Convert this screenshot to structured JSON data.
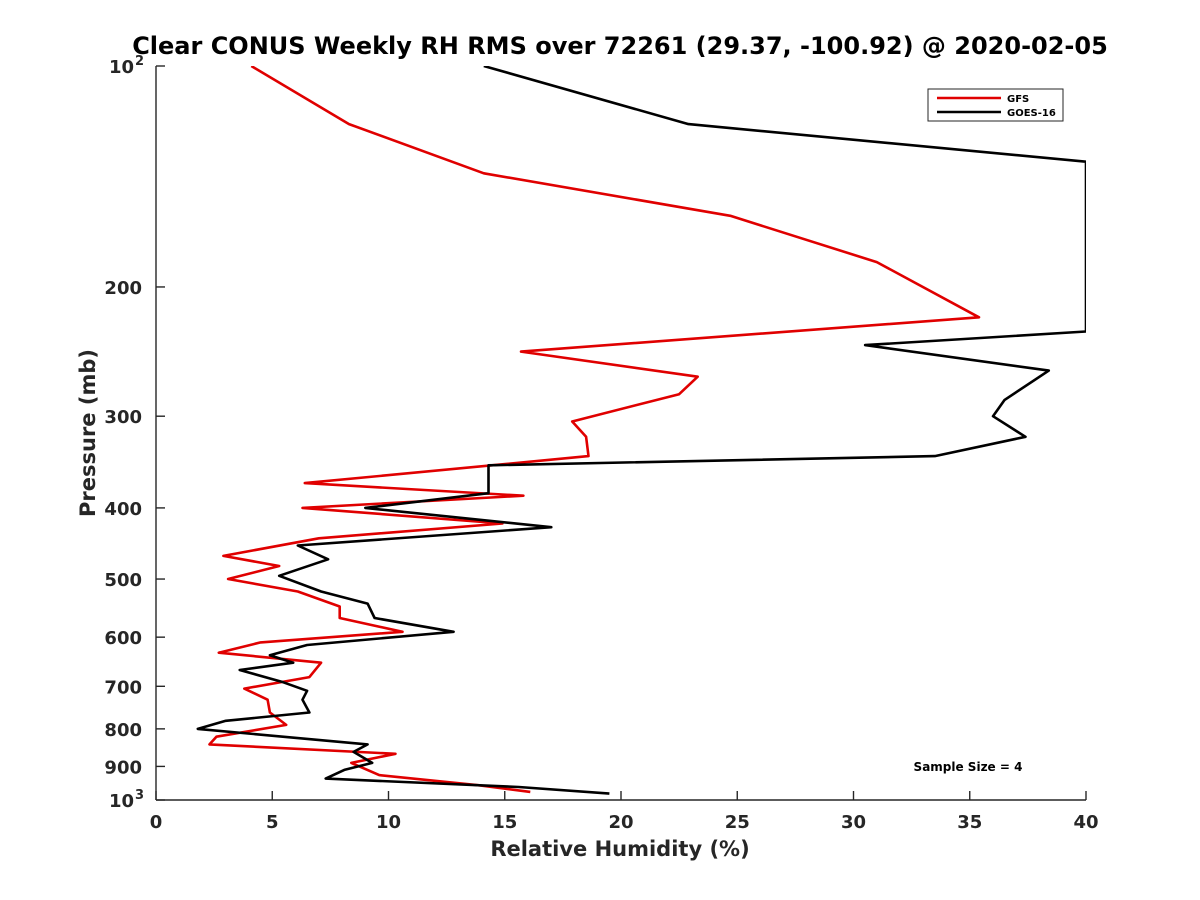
{
  "chart_data": {
    "type": "line",
    "title": "Clear CONUS Weekly RH RMS over 72261 (29.37, -100.92) @ 2020-02-05",
    "xlabel": "Relative Humidity (%)",
    "ylabel": "Pressure (mb)",
    "xlim": [
      0,
      40
    ],
    "ylim": [
      100,
      1000
    ],
    "y_scale": "log",
    "y_reversed": true,
    "x_ticks": [
      "0",
      "5",
      "10",
      "15",
      "20",
      "25",
      "30",
      "35",
      "40"
    ],
    "y_ticks": [
      {
        "value": 100,
        "label": "10",
        "exp": "2"
      },
      {
        "value": 200,
        "label": "200"
      },
      {
        "value": 300,
        "label": "300"
      },
      {
        "value": 400,
        "label": "400"
      },
      {
        "value": 500,
        "label": "500"
      },
      {
        "value": 600,
        "label": "600"
      },
      {
        "value": 700,
        "label": "700"
      },
      {
        "value": 800,
        "label": "800"
      },
      {
        "value": 900,
        "label": "900"
      },
      {
        "value": 1000,
        "label": "10",
        "exp": "3"
      }
    ],
    "legend_position": "top-right",
    "annotation": "Sample Size = 4",
    "series": [
      {
        "name": "GFS",
        "color": "#e00000",
        "points": [
          [
            4.1,
            100
          ],
          [
            8.3,
            120
          ],
          [
            14.1,
            140
          ],
          [
            24.7,
            160
          ],
          [
            31.0,
            185
          ],
          [
            35.4,
            220
          ],
          [
            15.7,
            245
          ],
          [
            23.3,
            265
          ],
          [
            22.5,
            280
          ],
          [
            17.9,
            305
          ],
          [
            18.5,
            320
          ],
          [
            18.6,
            340
          ],
          [
            6.4,
            370
          ],
          [
            15.8,
            385
          ],
          [
            6.3,
            400
          ],
          [
            14.9,
            420
          ],
          [
            7.0,
            440
          ],
          [
            2.9,
            465
          ],
          [
            5.3,
            480
          ],
          [
            3.1,
            500
          ],
          [
            6.1,
            520
          ],
          [
            7.9,
            545
          ],
          [
            7.9,
            565
          ],
          [
            10.6,
            590
          ],
          [
            4.5,
            610
          ],
          [
            2.7,
            630
          ],
          [
            7.1,
            650
          ],
          [
            6.6,
            680
          ],
          [
            3.8,
            705
          ],
          [
            4.8,
            730
          ],
          [
            4.9,
            760
          ],
          [
            5.6,
            790
          ],
          [
            2.6,
            820
          ],
          [
            2.3,
            840
          ],
          [
            10.3,
            865
          ],
          [
            8.4,
            890
          ],
          [
            9.6,
            925
          ],
          [
            13.9,
            955
          ],
          [
            16.1,
            975
          ]
        ]
      },
      {
        "name": "GOES-16",
        "color": "#000000",
        "points": [
          [
            14.1,
            100
          ],
          [
            22.9,
            120
          ],
          [
            40.0,
            135
          ],
          [
            40.0,
            230
          ],
          [
            30.5,
            240
          ],
          [
            38.4,
            260
          ],
          [
            36.5,
            285
          ],
          [
            36.0,
            300
          ],
          [
            37.4,
            320
          ],
          [
            33.5,
            340
          ],
          [
            14.3,
            350
          ],
          [
            14.3,
            382
          ],
          [
            9.0,
            400
          ],
          [
            17.0,
            425
          ],
          [
            6.1,
            450
          ],
          [
            7.4,
            470
          ],
          [
            5.3,
            495
          ],
          [
            7.1,
            520
          ],
          [
            9.1,
            540
          ],
          [
            9.4,
            565
          ],
          [
            12.8,
            590
          ],
          [
            6.5,
            615
          ],
          [
            4.9,
            635
          ],
          [
            5.9,
            650
          ],
          [
            3.6,
            665
          ],
          [
            5.4,
            690
          ],
          [
            6.5,
            710
          ],
          [
            6.3,
            730
          ],
          [
            6.6,
            760
          ],
          [
            3.0,
            780
          ],
          [
            1.8,
            800
          ],
          [
            9.1,
            840
          ],
          [
            8.5,
            860
          ],
          [
            9.3,
            890
          ],
          [
            8.1,
            910
          ],
          [
            7.3,
            935
          ],
          [
            15.6,
            960
          ],
          [
            19.5,
            980
          ]
        ]
      }
    ]
  }
}
